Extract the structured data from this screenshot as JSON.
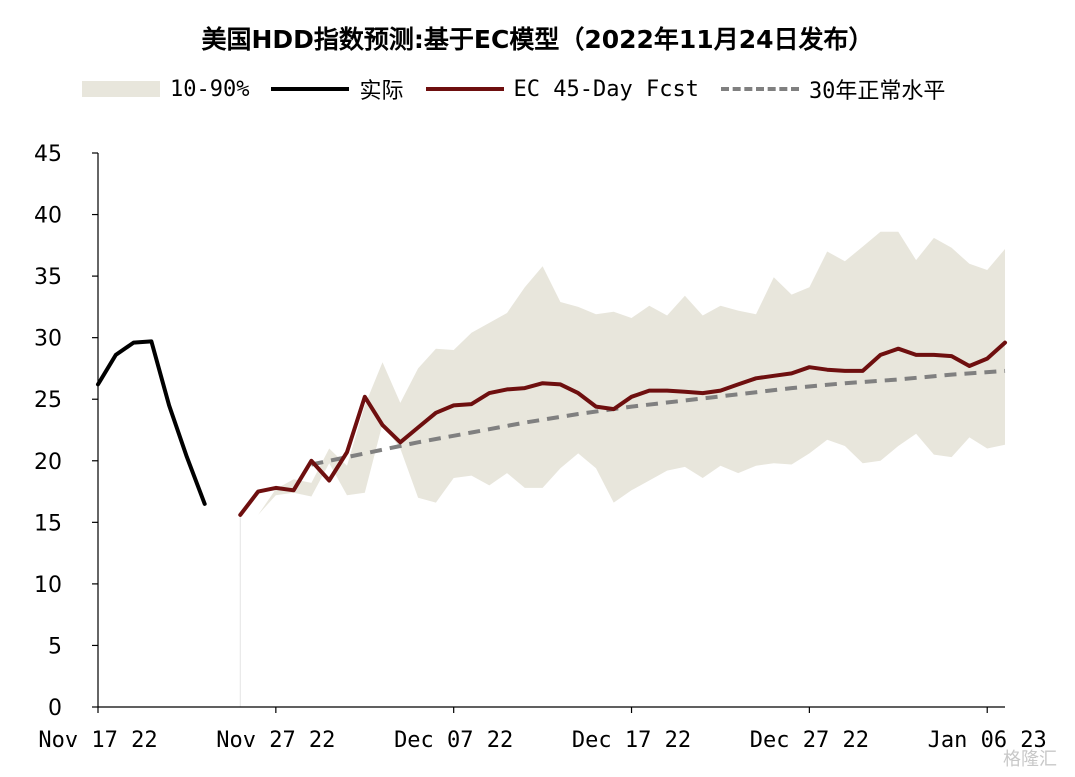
{
  "chart_data": {
    "type": "line",
    "title": "美国HDD指数预测:基于EC模型（2022年11月24日发布）",
    "xlabel": "",
    "ylabel": "",
    "ylim": [
      0,
      45
    ],
    "yticks": [
      0,
      5,
      10,
      15,
      20,
      25,
      30,
      35,
      40,
      45
    ],
    "xlim": [
      "2022-11-17",
      "2023-01-07"
    ],
    "xticks": [
      {
        "date": "2022-11-17",
        "label": "Nov 17 22"
      },
      {
        "date": "2022-11-27",
        "label": "Nov 27 22"
      },
      {
        "date": "2022-12-07",
        "label": "Dec 07 22"
      },
      {
        "date": "2022-12-17",
        "label": "Dec 17 22"
      },
      {
        "date": "2022-12-27",
        "label": "Dec 27 22"
      },
      {
        "date": "2023-01-06",
        "label": "Jan 06 23"
      }
    ],
    "grid": false,
    "legend_position": "top",
    "series": [
      {
        "name": "10-90%",
        "kind": "band",
        "color": "#e8e6dc",
        "x": [
          "2022-11-26",
          "2022-11-27",
          "2022-11-28",
          "2022-11-29",
          "2022-11-30",
          "2022-12-01",
          "2022-12-02",
          "2022-12-03",
          "2022-12-04",
          "2022-12-05",
          "2022-12-06",
          "2022-12-07",
          "2022-12-08",
          "2022-12-09",
          "2022-12-10",
          "2022-12-11",
          "2022-12-12",
          "2022-12-13",
          "2022-12-14",
          "2022-12-15",
          "2022-12-16",
          "2022-12-17",
          "2022-12-18",
          "2022-12-19",
          "2022-12-20",
          "2022-12-21",
          "2022-12-22",
          "2022-12-23",
          "2022-12-24",
          "2022-12-25",
          "2022-12-26",
          "2022-12-27",
          "2022-12-28",
          "2022-12-29",
          "2022-12-30",
          "2022-12-31",
          "2023-01-01",
          "2023-01-02",
          "2023-01-03",
          "2023-01-04",
          "2023-01-05",
          "2023-01-06",
          "2023-01-07"
        ],
        "low": [
          15.6,
          17.2,
          17.4,
          17.1,
          19.8,
          17.2,
          17.4,
          23.0,
          21.0,
          17.0,
          16.6,
          18.6,
          18.8,
          18.0,
          19.0,
          17.8,
          17.8,
          19.4,
          20.6,
          19.4,
          16.6,
          17.6,
          18.4,
          19.2,
          19.5,
          18.6,
          19.6,
          19.0,
          19.6,
          19.8,
          19.7,
          20.6,
          21.7,
          21.2,
          19.8,
          20.0,
          21.2,
          22.2,
          20.5,
          20.3,
          21.9,
          21.0,
          21.3
        ],
        "high": [
          15.6,
          17.7,
          18.5,
          18.2,
          21.0,
          19.6,
          24.5,
          28.0,
          24.7,
          27.5,
          29.1,
          29.0,
          30.4,
          31.2,
          32.0,
          34.1,
          35.8,
          32.9,
          32.5,
          31.9,
          32.1,
          31.6,
          32.6,
          31.8,
          33.4,
          31.8,
          32.6,
          32.2,
          31.9,
          34.9,
          33.5,
          34.1,
          37.0,
          36.2,
          37.4,
          38.6,
          38.6,
          36.3,
          38.1,
          37.3,
          36.0,
          35.5,
          37.2
        ]
      },
      {
        "name": "实际",
        "kind": "line",
        "color": "#000000",
        "x": [
          "2022-11-17",
          "2022-11-18",
          "2022-11-19",
          "2022-11-20",
          "2022-11-21",
          "2022-11-22",
          "2022-11-23",
          "2022-11-24"
        ],
        "values": [
          26.2,
          28.6,
          29.6,
          29.7,
          24.5,
          20.3,
          16.5,
          null
        ]
      },
      {
        "name": "EC 45-Day Fcst",
        "kind": "line",
        "color": "#6e0f0f",
        "x": [
          "2022-11-25",
          "2022-11-26",
          "2022-11-27",
          "2022-11-28",
          "2022-11-29",
          "2022-11-30",
          "2022-12-01",
          "2022-12-02",
          "2022-12-03",
          "2022-12-04",
          "2022-12-05",
          "2022-12-06",
          "2022-12-07",
          "2022-12-08",
          "2022-12-09",
          "2022-12-10",
          "2022-12-11",
          "2022-12-12",
          "2022-12-13",
          "2022-12-14",
          "2022-12-15",
          "2022-12-16",
          "2022-12-17",
          "2022-12-18",
          "2022-12-19",
          "2022-12-20",
          "2022-12-21",
          "2022-12-22",
          "2022-12-23",
          "2022-12-24",
          "2022-12-25",
          "2022-12-26",
          "2022-12-27",
          "2022-12-28",
          "2022-12-29",
          "2022-12-30",
          "2022-12-31",
          "2023-01-01",
          "2023-01-02",
          "2023-01-03",
          "2023-01-04",
          "2023-01-05",
          "2023-01-06",
          "2023-01-07"
        ],
        "values": [
          15.6,
          17.5,
          17.8,
          17.6,
          20.0,
          18.4,
          20.7,
          25.2,
          22.9,
          21.5,
          22.7,
          23.9,
          24.5,
          24.6,
          25.5,
          25.8,
          25.9,
          26.3,
          26.2,
          25.5,
          24.4,
          24.2,
          25.2,
          25.7,
          25.7,
          25.6,
          25.5,
          25.7,
          26.2,
          26.7,
          26.9,
          27.1,
          27.6,
          27.4,
          27.3,
          27.3,
          28.6,
          29.1,
          28.6,
          28.6,
          28.5,
          27.7,
          28.3,
          29.6
        ]
      },
      {
        "name": "30年正常水平",
        "kind": "dashed",
        "color": "#808080",
        "x": [
          "2022-11-29",
          "2022-12-02",
          "2022-12-05",
          "2022-12-08",
          "2022-12-11",
          "2022-12-14",
          "2022-12-17",
          "2022-12-20",
          "2022-12-23",
          "2022-12-26",
          "2022-12-29",
          "2023-01-01",
          "2023-01-04",
          "2023-01-07"
        ],
        "values": [
          19.7,
          20.6,
          21.5,
          22.3,
          23.1,
          23.8,
          24.4,
          24.9,
          25.4,
          25.9,
          26.3,
          26.6,
          27.0,
          27.3
        ]
      }
    ]
  },
  "watermark": "格隆汇"
}
